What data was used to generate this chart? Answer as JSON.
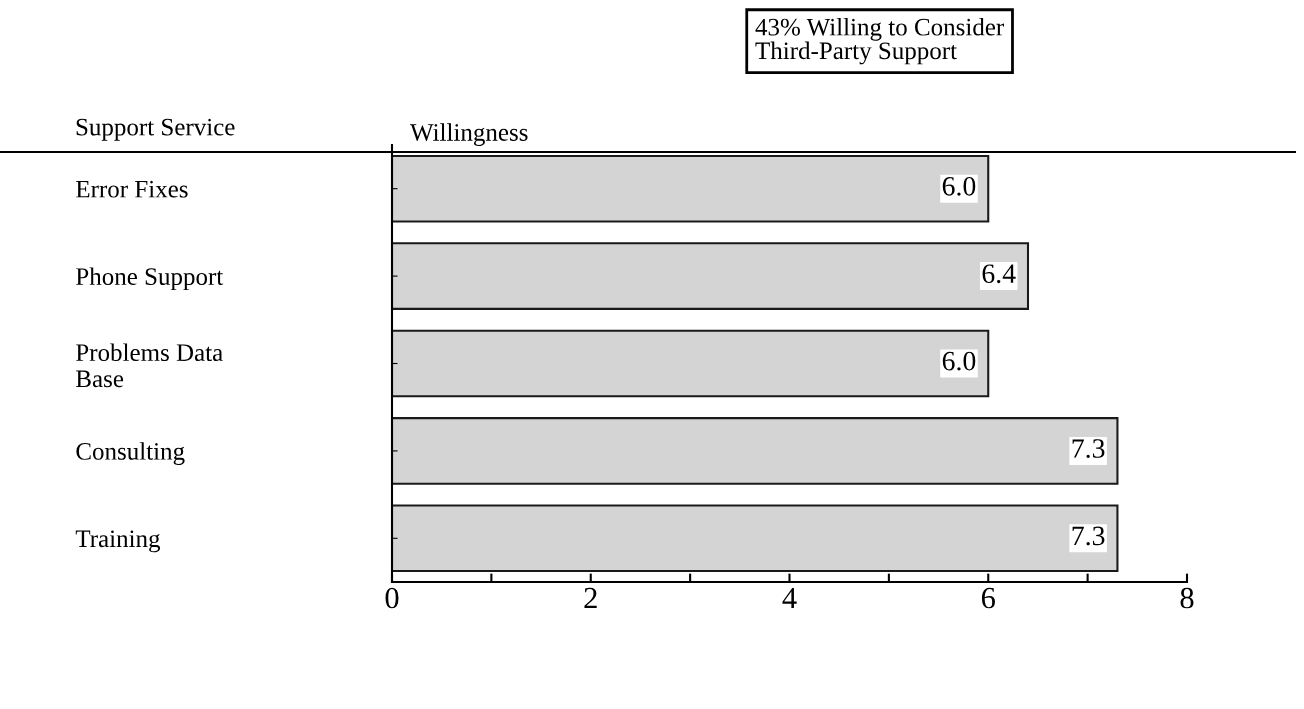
{
  "chart_data": {
    "type": "bar",
    "orientation": "horizontal",
    "categories": [
      "Error Fixes",
      "Phone Support",
      "Problems Data\nBase",
      "Consulting",
      "Training"
    ],
    "values": [
      6.0,
      6.4,
      6.0,
      7.3,
      7.3
    ],
    "color": "#d4d4d4",
    "value_labels": [
      "6.0",
      "6.4",
      "6.0",
      "7.3",
      "7.3"
    ],
    "ylabel": "Support Service",
    "xlabel": "Willingness",
    "annotations": [
      "43% Willing to Consider\nThird-Party Support"
    ],
    "xlim": [
      0,
      8
    ],
    "xticks": [
      0,
      {
        "value": 1,
        "label": null
      },
      2,
      {
        "value": 3,
        "label": null
      },
      4,
      {
        "value": 5,
        "label": null
      },
      6,
      {
        "value": 7,
        "label": null
      },
      8
    ],
    "grid": false,
    "legend": false
  }
}
